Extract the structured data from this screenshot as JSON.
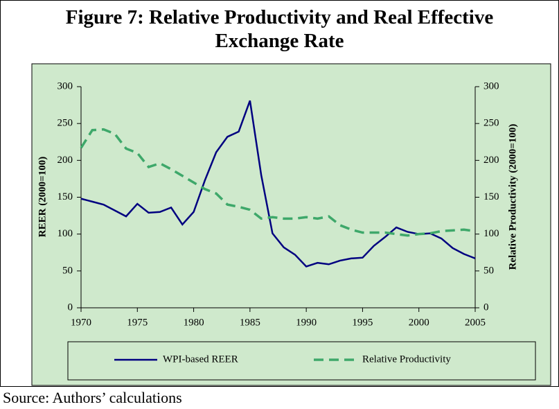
{
  "chart_data": {
    "type": "line",
    "title": "Figure 7: Relative Productivity and Real Effective Exchange Rate",
    "source": "Source: Authors’ calculations",
    "ylabel": "REER (2000=100)",
    "y2label": "Relative Productivity (2000=100)",
    "x": [
      1970,
      1971,
      1972,
      1973,
      1974,
      1975,
      1976,
      1977,
      1978,
      1979,
      1980,
      1981,
      1982,
      1983,
      1984,
      1985,
      1986,
      1987,
      1988,
      1989,
      1990,
      1991,
      1992,
      1993,
      1994,
      1995,
      1996,
      1997,
      1998,
      1999,
      2000,
      2001,
      2002,
      2003,
      2004,
      2005
    ],
    "series": [
      {
        "name": "WPI-based REER",
        "color": "#000080",
        "dash": false,
        "values": [
          148,
          144,
          140,
          132,
          124,
          141,
          129,
          130,
          136,
          113,
          130,
          173,
          211,
          232,
          239,
          281,
          180,
          101,
          82,
          72,
          56,
          61,
          59,
          64,
          67,
          68,
          84,
          96,
          109,
          103,
          100,
          101,
          94,
          81,
          73,
          67
        ]
      },
      {
        "name": "Relative Productivity",
        "color": "#3ea86a",
        "dash": true,
        "axis": "y2",
        "values": [
          217,
          241,
          242,
          236,
          216,
          210,
          191,
          196,
          188,
          179,
          170,
          161,
          155,
          140,
          137,
          133,
          121,
          123,
          121,
          121,
          123,
          121,
          124,
          112,
          106,
          102,
          102,
          102,
          100,
          98,
          100,
          101,
          104,
          105,
          106,
          104
        ]
      }
    ],
    "xlim": [
      1970,
      2005
    ],
    "xticks": [
      1970,
      1975,
      1980,
      1985,
      1990,
      1995,
      2000,
      2005
    ],
    "ylim": [
      0,
      300
    ],
    "yticks": [
      0,
      50,
      100,
      150,
      200,
      250,
      300
    ],
    "y2lim": [
      0,
      300
    ],
    "y2ticks": [
      0,
      50,
      100,
      150,
      200,
      250,
      300
    ],
    "grid": false,
    "legend": "bottom"
  }
}
